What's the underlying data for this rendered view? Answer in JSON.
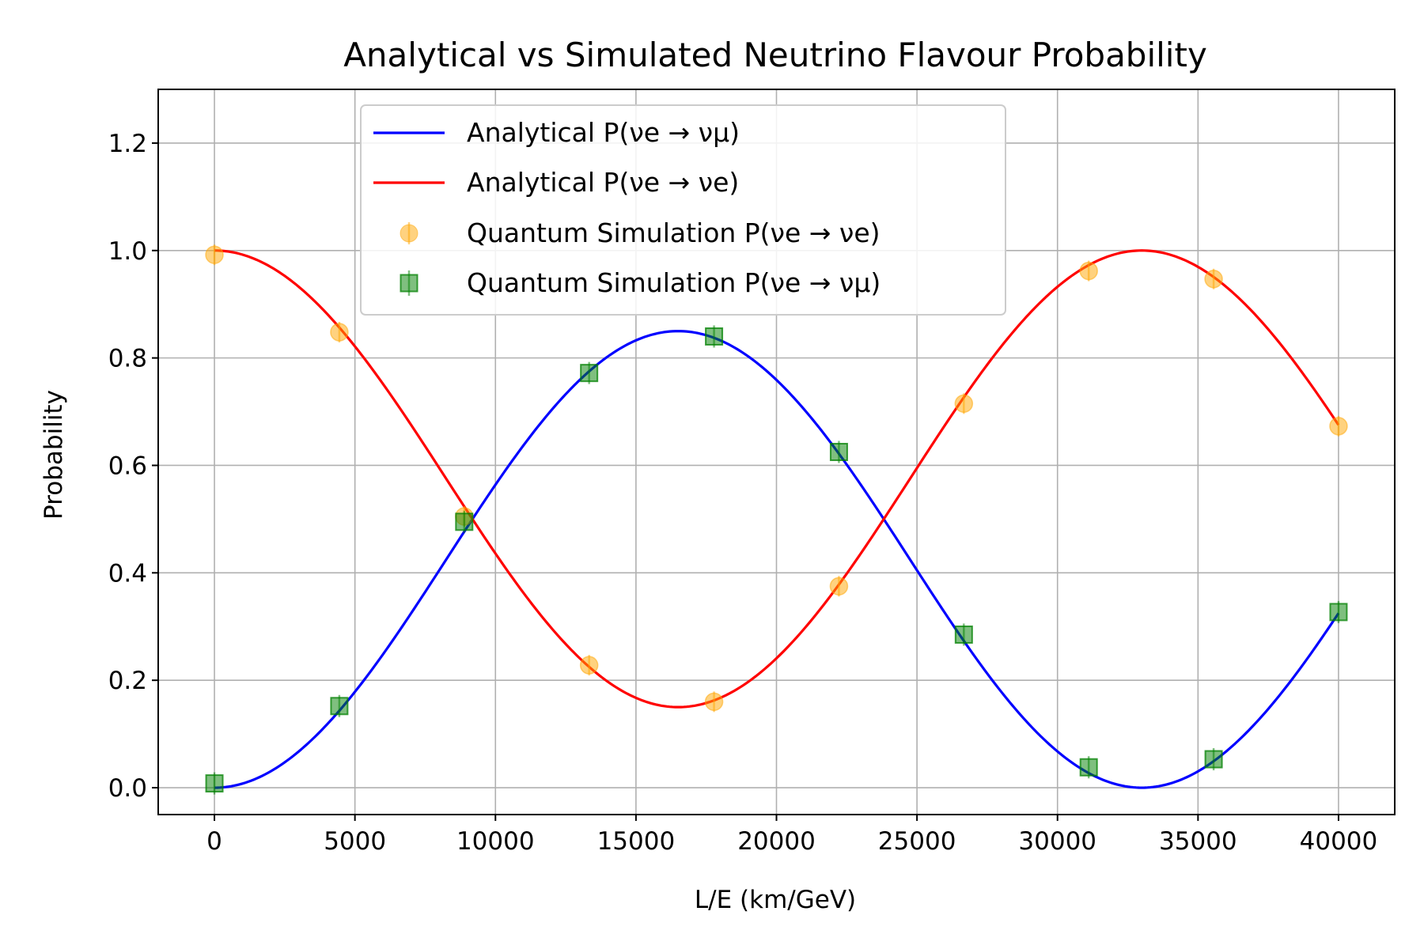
{
  "chart_data": {
    "type": "line",
    "title": "Analytical vs Simulated  Neutrino Flavour Probability",
    "xlabel": "L/E (km/GeV)",
    "ylabel": "Probability",
    "xlim": [
      -2000,
      42000
    ],
    "ylim": [
      -0.05,
      1.3
    ],
    "x_ticks": [
      0,
      5000,
      10000,
      15000,
      20000,
      25000,
      30000,
      35000,
      40000
    ],
    "y_ticks": [
      0.0,
      0.2,
      0.4,
      0.6,
      0.8,
      1.0,
      1.2
    ],
    "x_tick_labels": [
      "0",
      "5000",
      "10000",
      "15000",
      "20000",
      "25000",
      "30000",
      "35000",
      "40000"
    ],
    "y_tick_labels": [
      "0.0",
      "0.2",
      "0.4",
      "0.6",
      "0.8",
      "1.0",
      "1.2"
    ],
    "grid": true,
    "legend_position": "upper-center",
    "analytical_model": {
      "x_start": 0,
      "x_end": 40000,
      "amplitude": 0.85,
      "period": 33000
    },
    "series": [
      {
        "name": "Analytical P(νe → νμ)",
        "kind": "line",
        "color": "#0000ff",
        "function": "mu"
      },
      {
        "name": "Analytical P(νe → νe)",
        "kind": "line",
        "color": "#ff0000",
        "function": "e"
      },
      {
        "name": "Quantum Simulation P(νe → νe)",
        "kind": "scatter",
        "marker": "circle",
        "color": "#ffa500",
        "x": [
          0,
          4444,
          8889,
          13333,
          17778,
          22222,
          26667,
          31111,
          35556,
          40000
        ],
        "y": [
          0.992,
          0.848,
          0.505,
          0.228,
          0.16,
          0.375,
          0.715,
          0.962,
          0.947,
          0.673
        ]
      },
      {
        "name": "Quantum Simulation P(νe → νμ)",
        "kind": "scatter",
        "marker": "square",
        "color": "#008000",
        "x": [
          0,
          4444,
          8889,
          13333,
          17778,
          22222,
          26667,
          31111,
          35556,
          40000
        ],
        "y": [
          0.008,
          0.152,
          0.495,
          0.772,
          0.84,
          0.625,
          0.285,
          0.038,
          0.053,
          0.327
        ]
      }
    ]
  }
}
